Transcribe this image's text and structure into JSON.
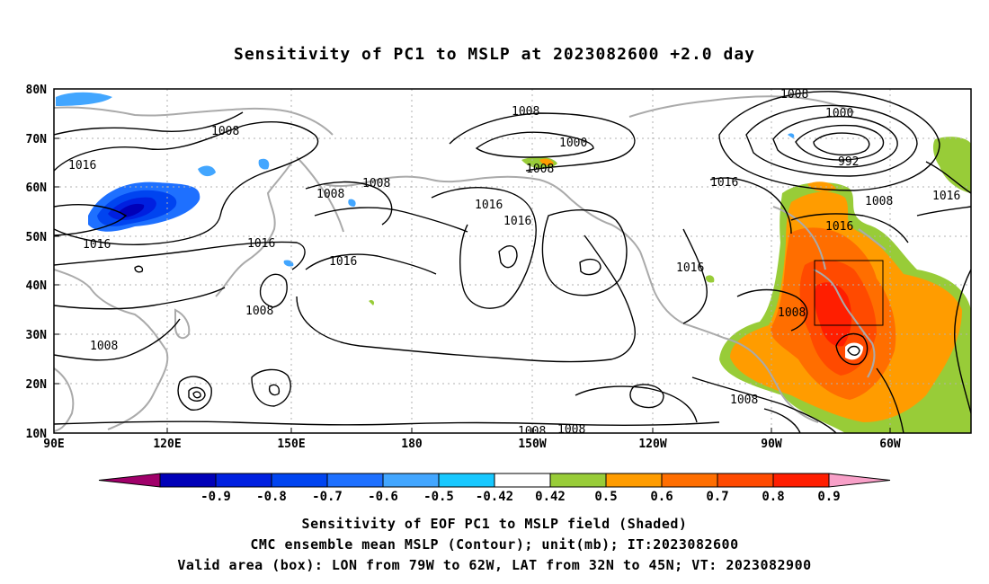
{
  "title": "Sensitivity of PC1 to MSLP at 2023082600 +2.0 day",
  "map": {
    "lon_labels": [
      "90E",
      "120E",
      "150E",
      "180",
      "150W",
      "120W",
      "90W",
      "60W"
    ],
    "lat_labels": [
      "80N",
      "70N",
      "60N",
      "50N",
      "40N",
      "30N",
      "20N",
      "10N"
    ],
    "contour_labels": [
      "1008",
      "1016",
      "1016",
      "1008",
      "1008",
      "1016",
      "1008",
      "1008",
      "1008",
      "1008",
      "1000",
      "1008",
      "1016",
      "1016",
      "1016",
      "1008",
      "1000",
      "992",
      "1016",
      "1008",
      "1016",
      "1016",
      "1016",
      "1008",
      "1008",
      "1008"
    ],
    "valid_box": {
      "lon_min": -79,
      "lon_max": -62,
      "lat_min": 32,
      "lat_max": 45
    }
  },
  "colorbar": {
    "labels": [
      "-0.9",
      "-0.8",
      "-0.7",
      "-0.6",
      "-0.5",
      "-0.42",
      "0.42",
      "0.5",
      "0.6",
      "0.7",
      "0.8",
      "0.9"
    ],
    "colors": [
      "#a0006a",
      "#0000b8",
      "#0020e0",
      "#0044f0",
      "#1e70ff",
      "#42a6ff",
      "#18c8ff",
      "#ffffff",
      "#98cc38",
      "#ff9c00",
      "#ff6e00",
      "#ff4a00",
      "#ff1e00",
      "#f8a0c8"
    ]
  },
  "caption": {
    "line1": "Sensitivity of EOF PC1 to MSLP field (Shaded)",
    "line2": "CMC ensemble mean MSLP (Contour); unit(mb); IT:2023082600",
    "line3": "Valid area (box): LON from 79W to 62W, LAT from 32N to 45N; VT: 2023082900"
  }
}
